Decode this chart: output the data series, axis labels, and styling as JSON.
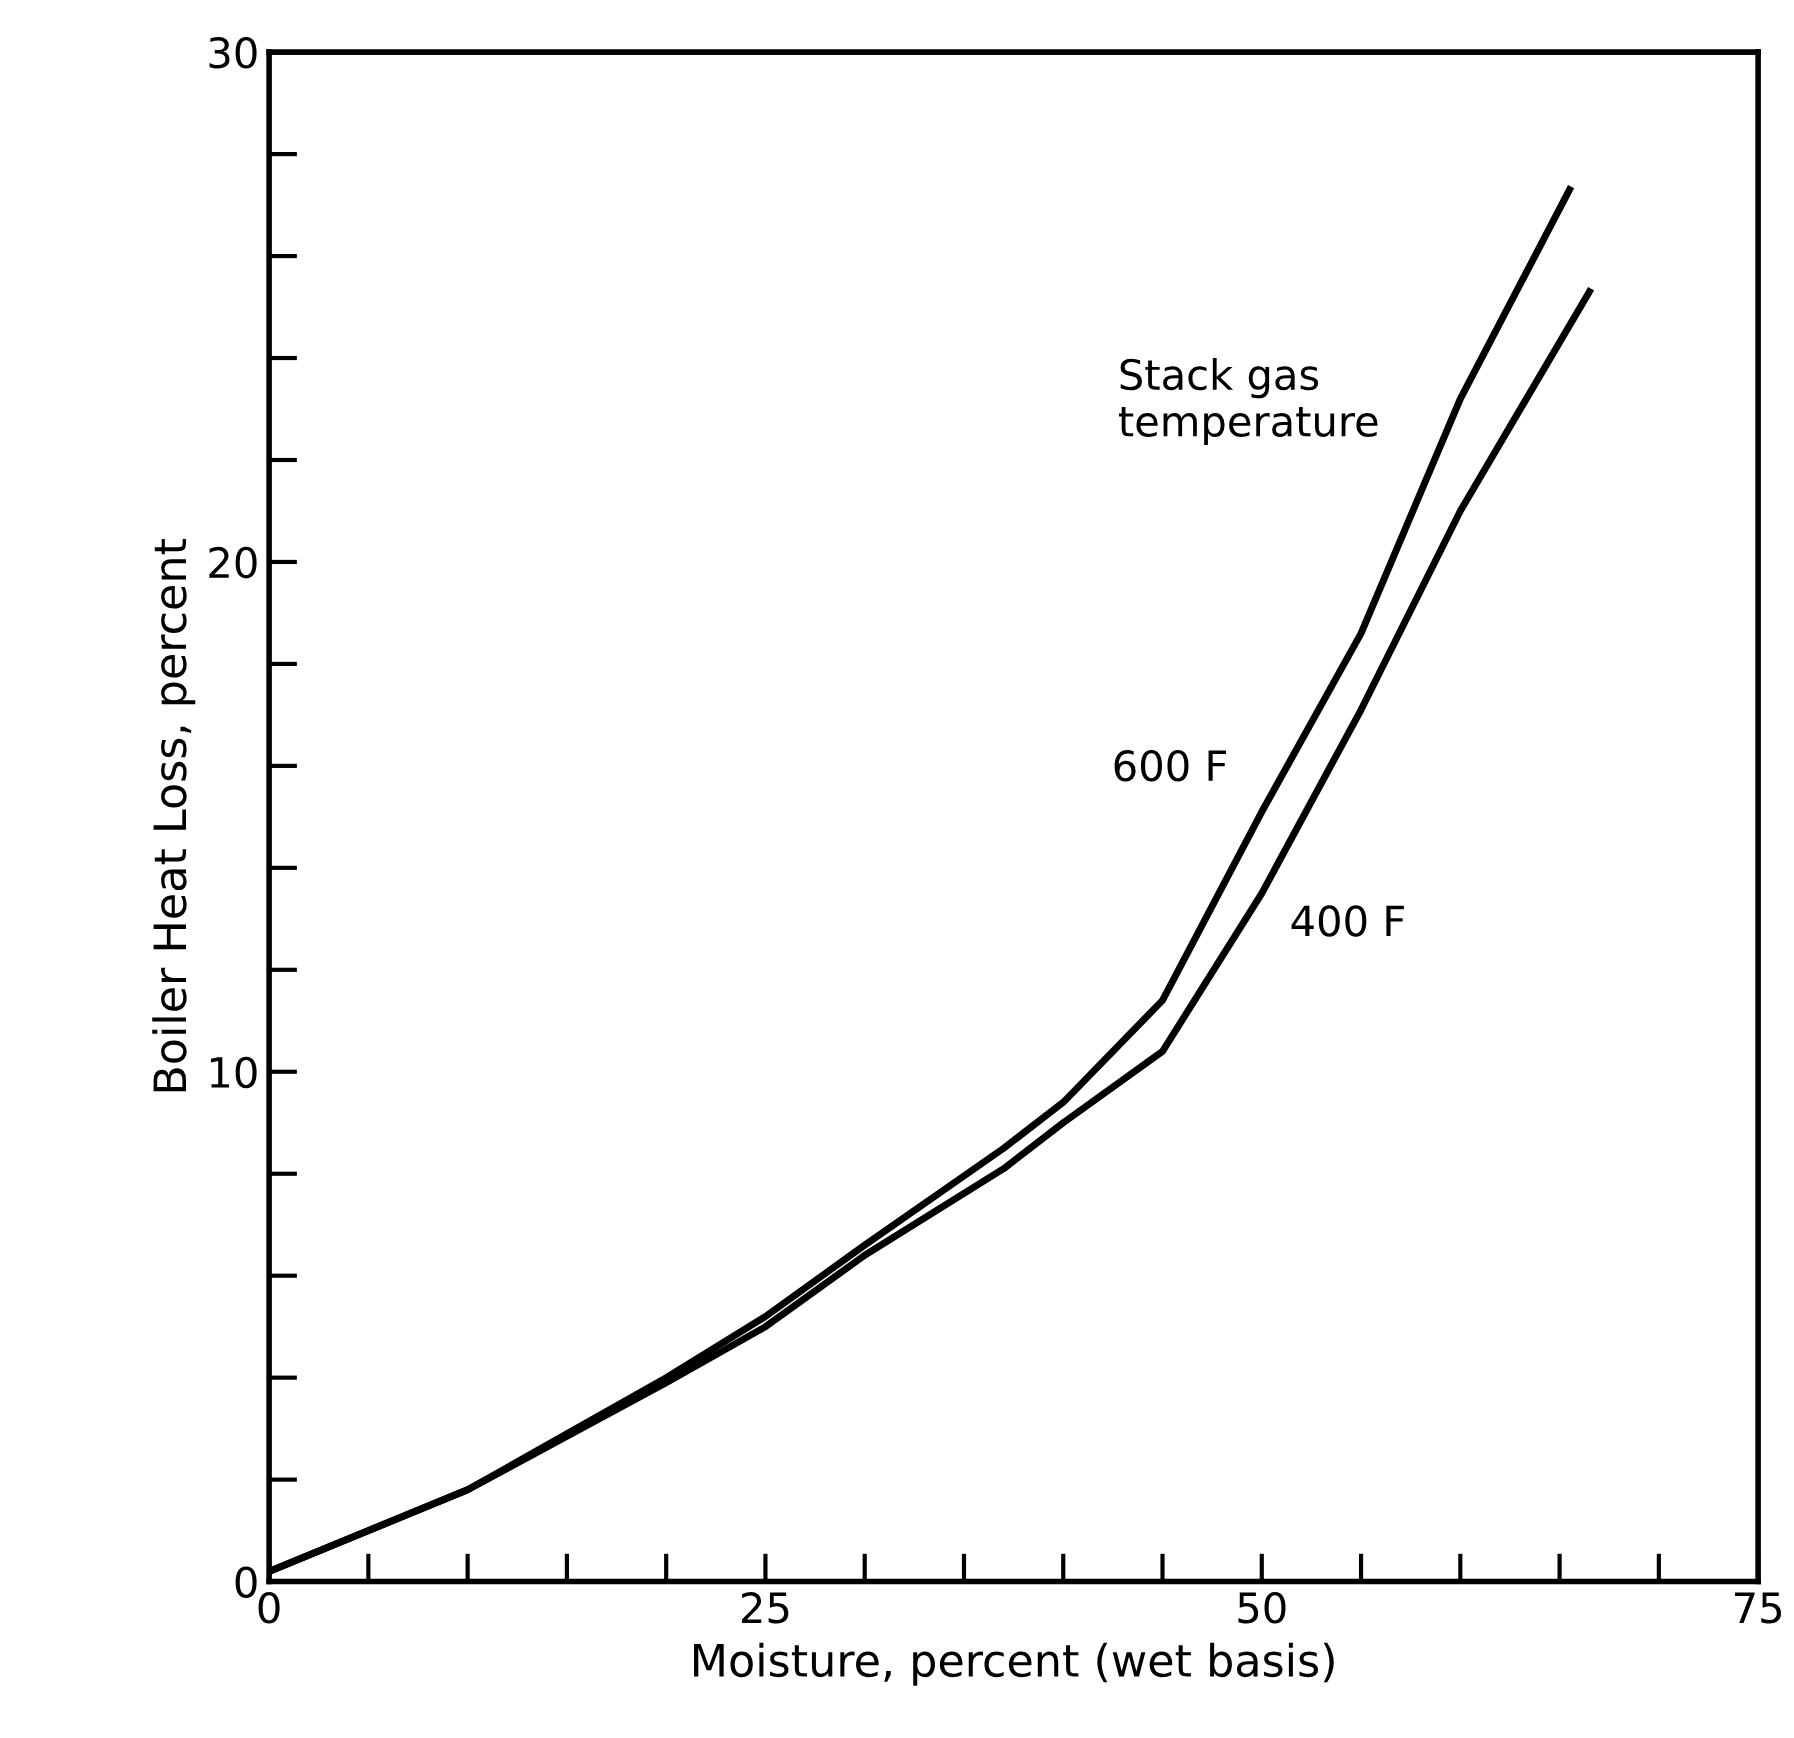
{
  "chart_data": {
    "type": "line",
    "xlabel": "Moisture, percent (wet basis)",
    "ylabel": "Boiler Heat Loss, percent",
    "annotations": [
      "Stack gas\ntemperature"
    ],
    "xlim": [
      0,
      75
    ],
    "ylim": [
      0,
      30
    ],
    "xticks": [
      0,
      {
        "value": 5,
        "label": null
      },
      {
        "value": 10,
        "label": null
      },
      {
        "value": 15,
        "label": null
      },
      {
        "value": 20,
        "label": null
      },
      25,
      {
        "value": 30,
        "label": null
      },
      {
        "value": 35,
        "label": null
      },
      {
        "value": 40,
        "label": null
      },
      {
        "value": 45,
        "label": null
      },
      50,
      {
        "value": 55,
        "label": null
      },
      {
        "value": 60,
        "label": null
      },
      {
        "value": 65,
        "label": null
      },
      {
        "value": 70,
        "label": null
      },
      75
    ],
    "yticks": [
      0,
      {
        "value": 2,
        "label": null
      },
      {
        "value": 4,
        "label": null
      },
      {
        "value": 6,
        "label": null
      },
      {
        "value": 8,
        "label": null
      },
      10,
      {
        "value": 12,
        "label": null
      },
      {
        "value": 14,
        "label": null
      },
      {
        "value": 16,
        "label": null
      },
      {
        "value": 18,
        "label": null
      },
      20,
      {
        "value": 22,
        "label": null
      },
      {
        "value": 24,
        "label": null
      },
      {
        "value": 26,
        "label": null
      },
      {
        "value": 28,
        "label": null
      },
      30
    ],
    "grid": false,
    "legend": false,
    "marker": "none",
    "line_style": "solid",
    "series": [
      {
        "name": "600 F",
        "color": "#000000",
        "x": [
          0,
          10,
          20,
          25,
          30,
          37,
          40,
          45,
          50,
          55,
          60,
          65.5
        ],
        "values": [
          0.2,
          1.8,
          4.0,
          5.2,
          6.6,
          8.5,
          9.4,
          11.4,
          15.1,
          18.6,
          23.2,
          27.3
        ]
      },
      {
        "name": "400 F",
        "color": "#000000",
        "x": [
          0,
          10,
          20,
          25,
          30,
          37,
          40,
          45,
          50,
          55,
          60,
          66.5
        ],
        "values": [
          0.2,
          1.8,
          3.9,
          5.0,
          6.4,
          8.1,
          9.0,
          10.4,
          13.5,
          17.1,
          21.0,
          25.3
        ]
      }
    ]
  }
}
